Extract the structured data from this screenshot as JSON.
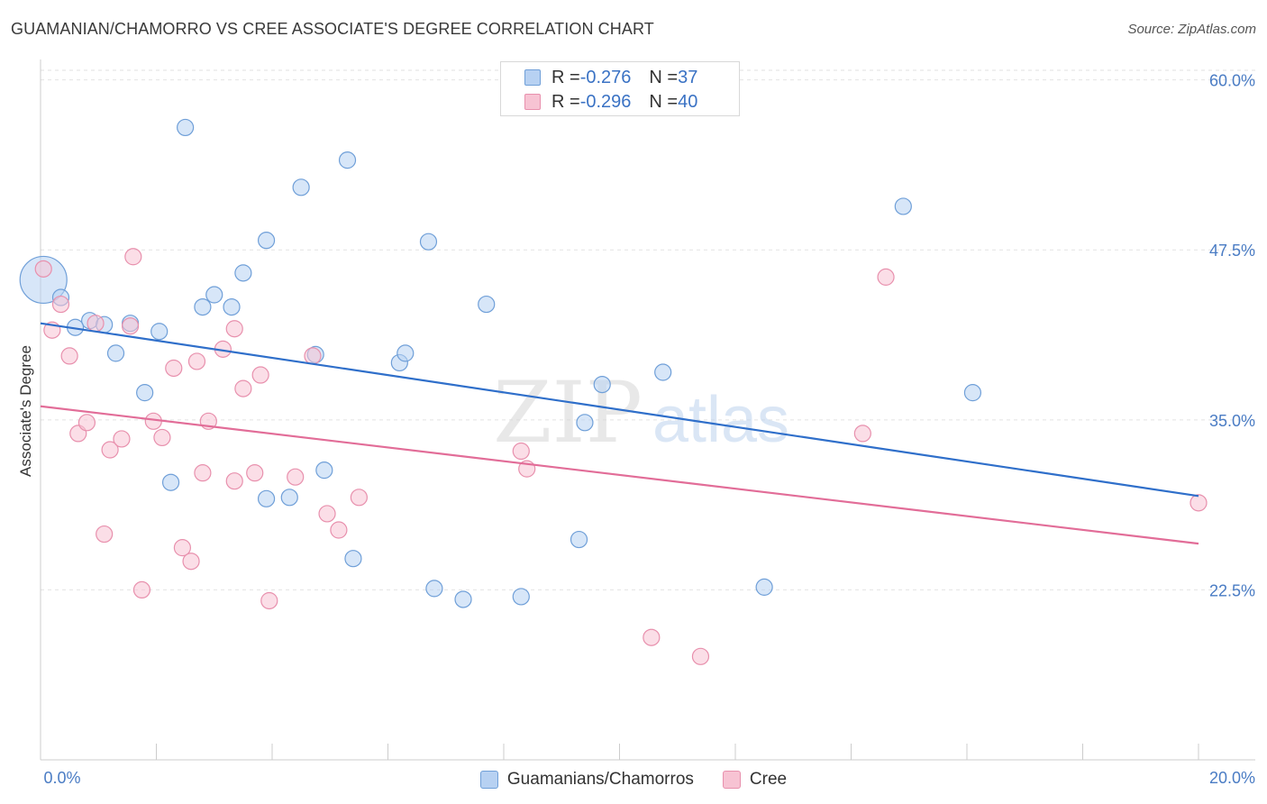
{
  "title": "GUAMANIAN/CHAMORRO VS CREE ASSOCIATE'S DEGREE CORRELATION CHART",
  "source": "Source: ZipAtlas.com",
  "watermark": {
    "zip": "ZIP",
    "atlas": "atlas"
  },
  "colors": {
    "blue_fill": "#b7d1f2",
    "blue_stroke": "#6f9fd8",
    "blue_line": "#2f6fca",
    "pink_fill": "#f7c3d3",
    "pink_stroke": "#e890ad",
    "pink_line": "#e26d98",
    "tick_label": "#4a7cc4",
    "grid": "#e2e2e2"
  },
  "legend": {
    "rows": [
      {
        "r_label": "R = ",
        "r_value": "-0.276",
        "n_label": "N = ",
        "n_value": "37"
      },
      {
        "r_label": "R = ",
        "r_value": "-0.296",
        "n_label": "N = ",
        "n_value": "40"
      }
    ]
  },
  "chart_data": {
    "type": "scatter",
    "title": "GUAMANIAN/CHAMORRO VS CREE ASSOCIATE'S DEGREE CORRELATION CHART",
    "xlabel": "",
    "ylabel": "Associate's Degree",
    "xlim": [
      0,
      20
    ],
    "ylim": [
      10,
      61.5
    ],
    "x_tick_labels": [
      {
        "value": 0,
        "label": "0.0%"
      },
      {
        "value": 20,
        "label": "20.0%"
      }
    ],
    "x_minor_ticks": [
      0,
      2,
      4,
      6,
      8,
      10,
      12,
      14,
      16,
      18,
      20
    ],
    "y_ticks": [
      {
        "value": 60,
        "label": "60.0%"
      },
      {
        "value": 47.5,
        "label": "47.5%"
      },
      {
        "value": 35,
        "label": "35.0%"
      },
      {
        "value": 22.5,
        "label": "22.5%"
      }
    ],
    "grid": true,
    "legend_position": "bottom",
    "series": [
      {
        "name": "Guamanians/Chamorros",
        "color": "#b7d1f2",
        "trend": [
          [
            0,
            42.1
          ],
          [
            20,
            29.4
          ]
        ],
        "points": [
          [
            0.05,
            45.3,
            3
          ],
          [
            0.35,
            44.0,
            1
          ],
          [
            0.85,
            42.3,
            1
          ],
          [
            1.1,
            42.0,
            1
          ],
          [
            1.55,
            42.1,
            1
          ],
          [
            1.3,
            39.9,
            1
          ],
          [
            2.05,
            41.5,
            1
          ],
          [
            1.8,
            37.0,
            1
          ],
          [
            2.25,
            30.4,
            1
          ],
          [
            2.5,
            56.5,
            1
          ],
          [
            2.8,
            43.3,
            1
          ],
          [
            3.0,
            44.2,
            1
          ],
          [
            3.3,
            43.3,
            1
          ],
          [
            3.5,
            45.8,
            1
          ],
          [
            3.9,
            29.2,
            1
          ],
          [
            3.9,
            48.2,
            1
          ],
          [
            4.3,
            29.3,
            1
          ],
          [
            4.5,
            52.1,
            1
          ],
          [
            4.75,
            39.8,
            1
          ],
          [
            4.9,
            31.3,
            1
          ],
          [
            5.3,
            54.1,
            1
          ],
          [
            5.4,
            24.8,
            1
          ],
          [
            6.2,
            39.2,
            1
          ],
          [
            6.3,
            39.9,
            1
          ],
          [
            6.7,
            48.1,
            1
          ],
          [
            6.8,
            22.6,
            1
          ],
          [
            7.3,
            21.8,
            1
          ],
          [
            7.7,
            43.5,
            1
          ],
          [
            8.3,
            22.0,
            1
          ],
          [
            9.3,
            26.2,
            1
          ],
          [
            9.4,
            34.8,
            1
          ],
          [
            9.7,
            37.6,
            1
          ],
          [
            10.75,
            38.5,
            1
          ],
          [
            12.5,
            22.7,
            1
          ],
          [
            14.9,
            50.7,
            1
          ],
          [
            16.1,
            37.0,
            1
          ],
          [
            0.6,
            41.8,
            0
          ]
        ]
      },
      {
        "name": "Cree",
        "color": "#f7c3d3",
        "trend": [
          [
            0,
            36.0
          ],
          [
            20,
            25.9
          ]
        ],
        "points": [
          [
            0.05,
            46.1,
            1
          ],
          [
            0.35,
            43.5,
            1
          ],
          [
            0.2,
            41.6,
            1
          ],
          [
            0.5,
            39.7,
            1
          ],
          [
            0.65,
            34.0,
            1
          ],
          [
            0.8,
            34.8,
            1
          ],
          [
            0.95,
            42.1,
            1
          ],
          [
            1.1,
            26.6,
            1
          ],
          [
            1.2,
            32.8,
            1
          ],
          [
            1.4,
            33.6,
            1
          ],
          [
            1.55,
            41.9,
            1
          ],
          [
            1.6,
            47.0,
            1
          ],
          [
            1.75,
            22.5,
            1
          ],
          [
            1.95,
            34.9,
            1
          ],
          [
            2.1,
            33.7,
            1
          ],
          [
            2.3,
            38.8,
            1
          ],
          [
            2.45,
            25.6,
            1
          ],
          [
            2.6,
            24.6,
            1
          ],
          [
            2.7,
            39.3,
            1
          ],
          [
            2.8,
            31.1,
            1
          ],
          [
            2.9,
            34.9,
            1
          ],
          [
            3.15,
            40.2,
            1
          ],
          [
            3.35,
            41.7,
            1
          ],
          [
            3.35,
            30.5,
            1
          ],
          [
            3.5,
            37.3,
            1
          ],
          [
            3.7,
            31.1,
            1
          ],
          [
            3.8,
            38.3,
            1
          ],
          [
            3.95,
            21.7,
            1
          ],
          [
            4.4,
            30.8,
            1
          ],
          [
            4.7,
            39.7,
            1
          ],
          [
            4.95,
            28.1,
            1
          ],
          [
            5.15,
            26.9,
            1
          ],
          [
            5.5,
            29.3,
            1
          ],
          [
            8.3,
            32.7,
            1
          ],
          [
            8.4,
            31.4,
            1
          ],
          [
            10.55,
            19.0,
            1
          ],
          [
            11.4,
            17.6,
            1
          ],
          [
            14.2,
            34.0,
            1
          ],
          [
            14.6,
            45.5,
            1
          ],
          [
            20.0,
            28.9,
            1
          ]
        ]
      }
    ]
  }
}
